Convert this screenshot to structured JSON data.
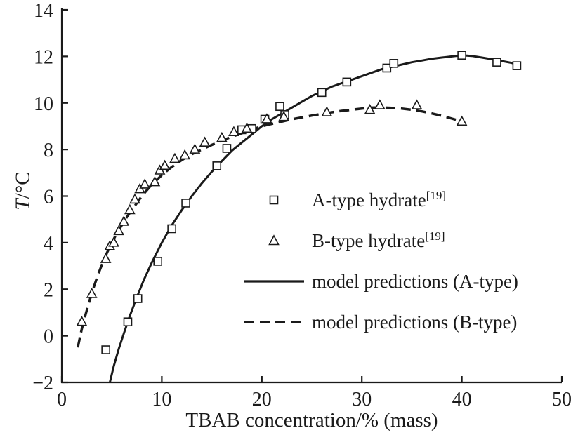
{
  "colors": {
    "ink": "#1a1a1a",
    "background": "#ffffff"
  },
  "chart_data": {
    "type": "scatter",
    "title": "",
    "xlabel": "TBAB concentration/% (mass)",
    "ylabel_italic": "T",
    "ylabel_rest": "/°C",
    "xlim": [
      0,
      50
    ],
    "ylim": [
      -2,
      14
    ],
    "x_ticks": [
      0,
      10,
      20,
      30,
      40,
      50
    ],
    "y_ticks": [
      -2,
      0,
      2,
      4,
      6,
      8,
      10,
      12,
      14
    ],
    "grid": false,
    "legend_position": "inside middle-right",
    "series": [
      {
        "id": "a-type-points",
        "name": "A-type hydrate",
        "ref": "[19]",
        "kind": "scatter",
        "marker": "square",
        "points": [
          [
            4.4,
            -0.6
          ],
          [
            6.6,
            0.6
          ],
          [
            7.6,
            1.6
          ],
          [
            9.6,
            3.2
          ],
          [
            11,
            4.6
          ],
          [
            12.4,
            5.7
          ],
          [
            15.5,
            7.3
          ],
          [
            16.5,
            8.05
          ],
          [
            18,
            8.85
          ],
          [
            19,
            8.9
          ],
          [
            20.3,
            9.3
          ],
          [
            21.8,
            9.85
          ],
          [
            22.3,
            9.5
          ],
          [
            26,
            10.45
          ],
          [
            28.5,
            10.9
          ],
          [
            32.5,
            11.5
          ],
          [
            33.2,
            11.7
          ],
          [
            40,
            12.05
          ],
          [
            43.5,
            11.75
          ],
          [
            45.5,
            11.6
          ]
        ]
      },
      {
        "id": "b-type-points",
        "name": "B-type hydrate",
        "ref": "[19]",
        "kind": "scatter",
        "marker": "triangle",
        "points": [
          [
            2,
            0.6
          ],
          [
            3,
            1.8
          ],
          [
            4.4,
            3.3
          ],
          [
            4.8,
            3.85
          ],
          [
            5.2,
            4.0
          ],
          [
            5.7,
            4.5
          ],
          [
            6.2,
            4.9
          ],
          [
            6.8,
            5.4
          ],
          [
            7.3,
            5.85
          ],
          [
            7.8,
            6.3
          ],
          [
            8.3,
            6.5
          ],
          [
            9.3,
            6.6
          ],
          [
            9.8,
            7.1
          ],
          [
            10.3,
            7.3
          ],
          [
            11.3,
            7.6
          ],
          [
            12.3,
            7.75
          ],
          [
            13.3,
            8.0
          ],
          [
            14.3,
            8.3
          ],
          [
            16,
            8.5
          ],
          [
            17.2,
            8.75
          ],
          [
            18.5,
            8.9
          ],
          [
            20.5,
            9.3
          ],
          [
            22.2,
            9.4
          ],
          [
            26.5,
            9.6
          ],
          [
            30.8,
            9.7
          ],
          [
            31.8,
            9.9
          ],
          [
            35.5,
            9.9
          ],
          [
            40,
            9.2
          ]
        ]
      },
      {
        "id": "a-type-model",
        "name": "model predictions (A-type)",
        "kind": "line",
        "style": "solid",
        "width": 3,
        "points": [
          [
            4.8,
            -2
          ],
          [
            5.2,
            -1.3
          ],
          [
            5.7,
            -0.55
          ],
          [
            6.2,
            0.1
          ],
          [
            6.8,
            0.85
          ],
          [
            7.5,
            1.65
          ],
          [
            8.2,
            2.4
          ],
          [
            9,
            3.15
          ],
          [
            10,
            4.0
          ],
          [
            11,
            4.75
          ],
          [
            12,
            5.4
          ],
          [
            13,
            6.0
          ],
          [
            14,
            6.55
          ],
          [
            15,
            7.05
          ],
          [
            16,
            7.5
          ],
          [
            17,
            7.95
          ],
          [
            18,
            8.3
          ],
          [
            19,
            8.65
          ],
          [
            20,
            9.0
          ],
          [
            21,
            9.3
          ],
          [
            22,
            9.55
          ],
          [
            23,
            9.8
          ],
          [
            24,
            10.05
          ],
          [
            25,
            10.3
          ],
          [
            26,
            10.5
          ],
          [
            27,
            10.7
          ],
          [
            28,
            10.85
          ],
          [
            29,
            11.0
          ],
          [
            30,
            11.15
          ],
          [
            31,
            11.3
          ],
          [
            32,
            11.45
          ],
          [
            33,
            11.55
          ],
          [
            34,
            11.65
          ],
          [
            35,
            11.75
          ],
          [
            36,
            11.82
          ],
          [
            37,
            11.9
          ],
          [
            38,
            11.95
          ],
          [
            39,
            12.0
          ],
          [
            40,
            12.05
          ],
          [
            41,
            12.02
          ],
          [
            42,
            11.95
          ],
          [
            43,
            11.88
          ],
          [
            44,
            11.8
          ],
          [
            45,
            11.72
          ],
          [
            45.5,
            11.65
          ]
        ]
      },
      {
        "id": "b-type-model",
        "name": "model predictions (B-type)",
        "kind": "line",
        "style": "dashed",
        "width": 3.5,
        "dash": "14 8",
        "points": [
          [
            1.6,
            -0.5
          ],
          [
            1.8,
            -0.1
          ],
          [
            2,
            0.3
          ],
          [
            2.4,
            0.95
          ],
          [
            2.8,
            1.55
          ],
          [
            3.2,
            2.1
          ],
          [
            3.6,
            2.6
          ],
          [
            4,
            3.05
          ],
          [
            4.5,
            3.55
          ],
          [
            5,
            4.0
          ],
          [
            5.5,
            4.4
          ],
          [
            6,
            4.75
          ],
          [
            6.5,
            5.1
          ],
          [
            7,
            5.4
          ],
          [
            7.5,
            5.7
          ],
          [
            8,
            6.0
          ],
          [
            8.5,
            6.25
          ],
          [
            9,
            6.5
          ],
          [
            9.5,
            6.7
          ],
          [
            10,
            6.9
          ],
          [
            10.5,
            7.08
          ],
          [
            11,
            7.25
          ],
          [
            11.5,
            7.4
          ],
          [
            12,
            7.55
          ],
          [
            12.5,
            7.68
          ],
          [
            13,
            7.8
          ],
          [
            14,
            8.0
          ],
          [
            15,
            8.2
          ],
          [
            16,
            8.38
          ],
          [
            17,
            8.55
          ],
          [
            18,
            8.7
          ],
          [
            19,
            8.85
          ],
          [
            20,
            9.0
          ],
          [
            21,
            9.1
          ],
          [
            22,
            9.2
          ],
          [
            23,
            9.3
          ],
          [
            24,
            9.38
          ],
          [
            25,
            9.46
          ],
          [
            26,
            9.53
          ],
          [
            27,
            9.6
          ],
          [
            28,
            9.66
          ],
          [
            29,
            9.71
          ],
          [
            30,
            9.76
          ],
          [
            31,
            9.8
          ],
          [
            32,
            9.81
          ],
          [
            33,
            9.79
          ],
          [
            34,
            9.76
          ],
          [
            35,
            9.71
          ],
          [
            36,
            9.64
          ],
          [
            37,
            9.55
          ],
          [
            38,
            9.45
          ],
          [
            39,
            9.33
          ],
          [
            40,
            9.2
          ]
        ]
      }
    ]
  }
}
